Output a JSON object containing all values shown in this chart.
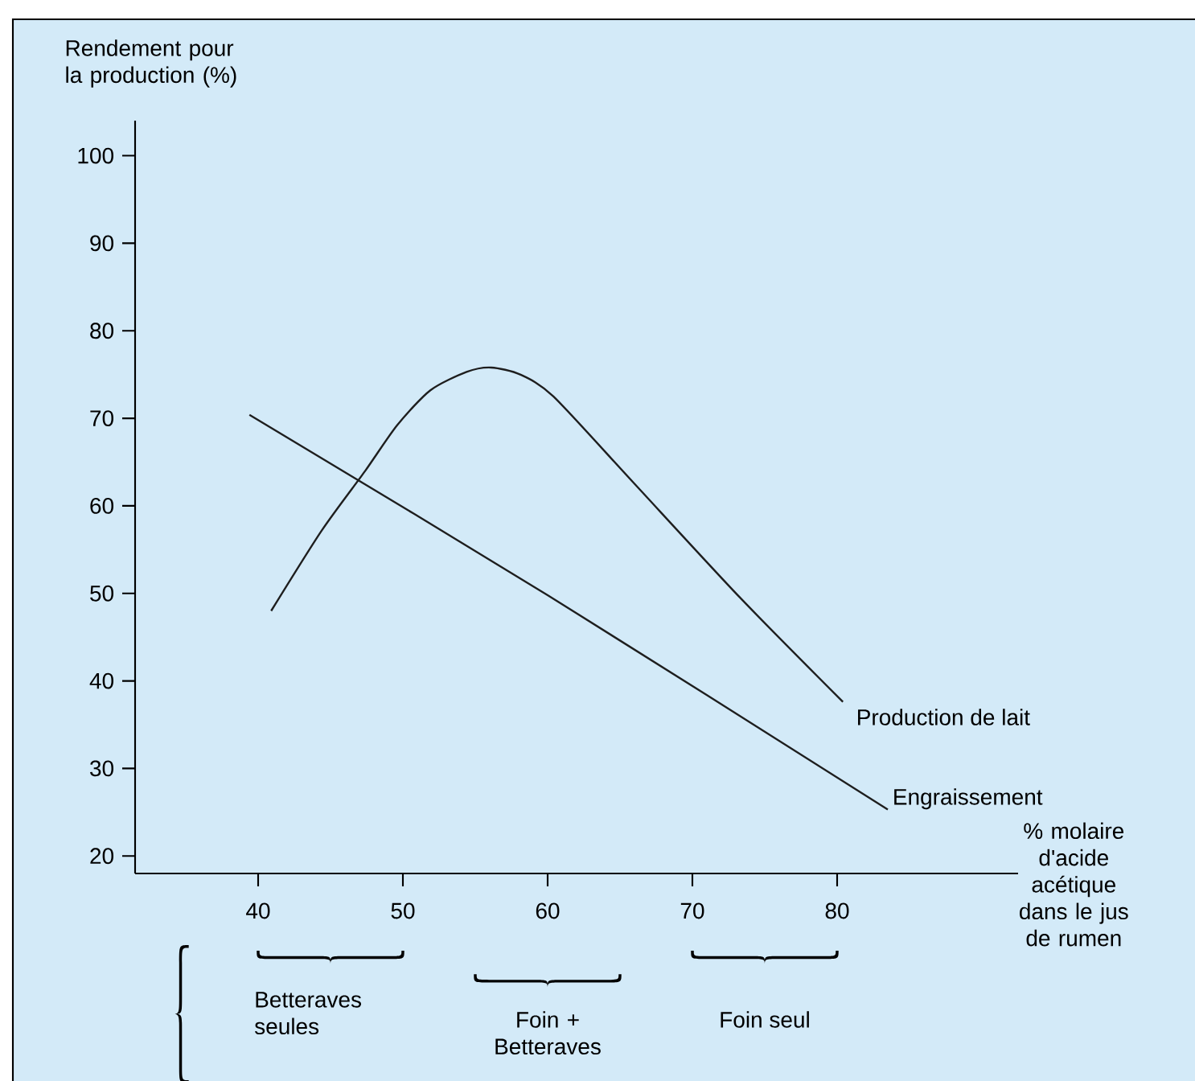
{
  "chart_data": {
    "type": "line",
    "xlabel": "% molaire d'acide acétique dans le jus de rumen",
    "ylabel": "Rendement pour la production (%)",
    "xlim": [
      31.5,
      92.5
    ],
    "ylim": [
      18,
      104
    ],
    "xticks": [
      40,
      50,
      60,
      70,
      80
    ],
    "yticks": [
      20,
      30,
      40,
      50,
      60,
      70,
      80,
      90,
      100
    ],
    "series": [
      {
        "name": "Production de lait",
        "color": "#1e1e1e",
        "x": [
          40.9,
          44.4,
          47.4,
          49.6,
          51.9,
          54.4,
          56.1,
          58.1,
          60.4,
          65.9,
          73.3,
          80.4
        ],
        "values": [
          48.0,
          57.2,
          64.0,
          69.2,
          73.2,
          75.3,
          75.8,
          75.0,
          72.5,
          62.7,
          49.5,
          37.6
        ]
      },
      {
        "name": "Engraissement",
        "color": "#1e1e1e",
        "x": [
          39.4,
          60,
          83.5
        ],
        "values": [
          70.4,
          49.8,
          25.3
        ]
      }
    ],
    "annotations": [
      "Betteraves seules",
      "Foin + Betteraves",
      "Foin seul"
    ],
    "line_style": "solid",
    "marker": "none"
  }
}
